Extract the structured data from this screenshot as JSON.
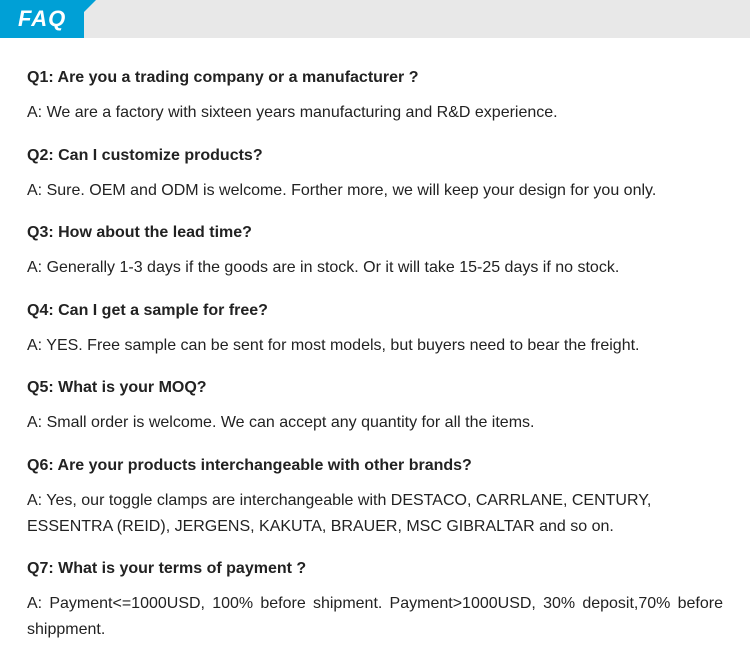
{
  "header": {
    "title": "FAQ",
    "badge_bg_color": "#00a0d6",
    "badge_text_color": "#ffffff",
    "bar_bg_color": "#e8e8e8"
  },
  "faqs": [
    {
      "question": "Q1:  Are you a trading company or a manufacturer ?",
      "answer": "A: We are a factory with sixteen years manufacturing and R&D experience."
    },
    {
      "question": "Q2: Can I customize products?",
      "answer": "A: Sure. OEM and ODM is welcome. Forther more, we will keep your design for you only."
    },
    {
      "question": "Q3: How about the lead time?",
      "answer": "A: Generally 1-3 days if the goods are in stock. Or it will take 15-25 days if no stock."
    },
    {
      "question": "Q4: Can I get a sample for free?",
      "answer": "A: YES. Free sample can be sent for most models, but buyers need to bear the freight."
    },
    {
      "question": "Q5: What is your MOQ?",
      "answer": "A: Small order is welcome. We can accept any quantity for all the items."
    },
    {
      "question": "Q6: Are your products interchangeable with other brands?",
      "answer": "A: Yes, our toggle clamps are interchangeable with DESTACO,  CARRLANE, CENTURY, ESSENTRA (REID), JERGENS, KAKUTA, BRAUER,  MSC GIBRALTAR and so on."
    },
    {
      "question": "Q7: What is your terms of payment ?",
      "answer": "A: Payment<=1000USD, 100% before shipment. Payment>1000USD, 30% deposit,70% before shippment.",
      "justified": true
    }
  ],
  "styles": {
    "body_bg": "#ffffff",
    "text_color": "#222222",
    "question_fontsize": 16,
    "answer_fontsize": 16,
    "content_padding_x": 27
  }
}
